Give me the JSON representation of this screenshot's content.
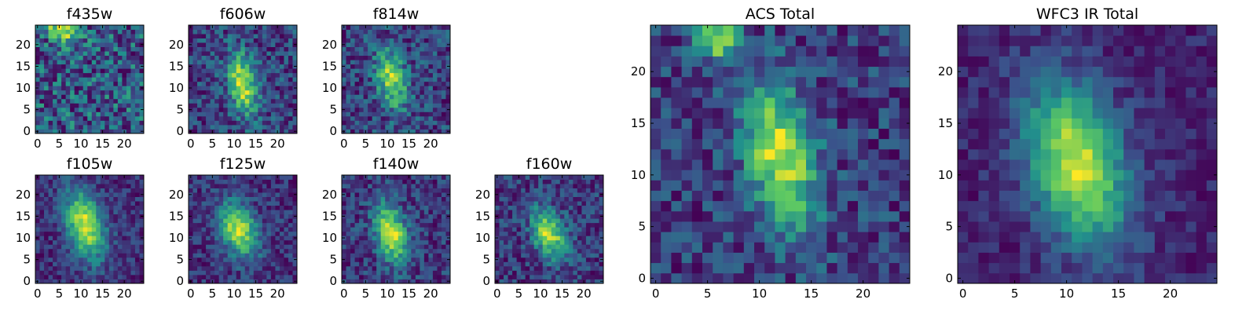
{
  "figure": {
    "colormap": "viridis",
    "colormap_stops": [
      "#440154",
      "#3b528b",
      "#21918c",
      "#5ec962",
      "#fde725"
    ],
    "background": "#ffffff"
  },
  "chart_data": [
    {
      "type": "heatmap",
      "title": "f435w",
      "grid_size": 25,
      "xticks": [
        0,
        5,
        10,
        15,
        20
      ],
      "yticks": [
        0,
        5,
        10,
        15,
        20
      ],
      "xlim": [
        -0.5,
        24.5
      ],
      "ylim": [
        -0.5,
        24.5
      ],
      "peak": [
        6,
        23
      ],
      "peak_sigma": [
        2.5,
        1.8
      ],
      "noise": 0.5,
      "seed": 11,
      "base_level": 0.52
    },
    {
      "type": "heatmap",
      "title": "f606w",
      "grid_size": 25,
      "xticks": [
        0,
        5,
        10,
        15,
        20
      ],
      "yticks": [
        0,
        5,
        10,
        15,
        20
      ],
      "xlim": [
        -0.5,
        24.5
      ],
      "ylim": [
        -0.5,
        24.5
      ],
      "peak": [
        12,
        11
      ],
      "peak_sigma": [
        2.2,
        5.0
      ],
      "noise": 0.35,
      "seed": 23,
      "base_level": 0.45
    },
    {
      "type": "heatmap",
      "title": "f814w",
      "grid_size": 25,
      "xticks": [
        0,
        5,
        10,
        15,
        20
      ],
      "yticks": [
        0,
        5,
        10,
        15,
        20
      ],
      "xlim": [
        -0.5,
        24.5
      ],
      "ylim": [
        -0.5,
        24.5
      ],
      "peak": [
        11,
        12
      ],
      "peak_sigma": [
        2.4,
        4.8
      ],
      "noise": 0.4,
      "seed": 37,
      "base_level": 0.42
    },
    {
      "type": "heatmap",
      "title": "f105w",
      "grid_size": 25,
      "xticks": [
        0,
        5,
        10,
        15,
        20
      ],
      "yticks": [
        0,
        5,
        10,
        15,
        20
      ],
      "xlim": [
        -0.5,
        24.5
      ],
      "ylim": [
        -0.5,
        24.5
      ],
      "peak": [
        11,
        13
      ],
      "peak_sigma": [
        3.0,
        5.5
      ],
      "noise": 0.22,
      "seed": 41,
      "base_level": 0.42
    },
    {
      "type": "heatmap",
      "title": "f125w",
      "grid_size": 25,
      "xticks": [
        0,
        5,
        10,
        15,
        20
      ],
      "yticks": [
        0,
        5,
        10,
        15,
        20
      ],
      "xlim": [
        -0.5,
        24.5
      ],
      "ylim": [
        -0.5,
        24.5
      ],
      "peak": [
        11,
        12
      ],
      "peak_sigma": [
        3.0,
        4.5
      ],
      "noise": 0.25,
      "seed": 53,
      "base_level": 0.45
    },
    {
      "type": "heatmap",
      "title": "f140w",
      "grid_size": 25,
      "xticks": [
        0,
        5,
        10,
        15,
        20
      ],
      "yticks": [
        0,
        5,
        10,
        15,
        20
      ],
      "xlim": [
        -0.5,
        24.5
      ],
      "ylim": [
        -0.5,
        24.5
      ],
      "peak": [
        11,
        11
      ],
      "peak_sigma": [
        2.5,
        4.8
      ],
      "noise": 0.28,
      "seed": 67,
      "base_level": 0.42
    },
    {
      "type": "heatmap",
      "title": "f160w",
      "grid_size": 25,
      "xticks": [
        0,
        5,
        10,
        15,
        20
      ],
      "yticks": [
        0,
        5,
        10,
        15,
        20
      ],
      "xlim": [
        -0.5,
        24.5
      ],
      "ylim": [
        -0.5,
        24.5
      ],
      "peak": [
        12,
        11
      ],
      "peak_sigma": [
        2.6,
        4.0
      ],
      "noise": 0.3,
      "seed": 79,
      "base_level": 0.35
    },
    {
      "type": "heatmap",
      "title": "ACS Total",
      "grid_size": 25,
      "xticks": [
        0,
        5,
        10,
        15,
        20
      ],
      "yticks": [
        0,
        5,
        10,
        15,
        20
      ],
      "xlim": [
        -0.5,
        24.5
      ],
      "ylim": [
        -0.5,
        24.5
      ],
      "peak": [
        12,
        12
      ],
      "peak_sigma": [
        2.3,
        5.0
      ],
      "secondary_peak": [
        6,
        23
      ],
      "noise": 0.3,
      "seed": 97,
      "base_level": 0.45
    },
    {
      "type": "heatmap",
      "title": "WFC3 IR Total",
      "grid_size": 25,
      "xticks": [
        0,
        5,
        10,
        15,
        20
      ],
      "yticks": [
        0,
        5,
        10,
        15,
        20
      ],
      "xlim": [
        -0.5,
        24.5
      ],
      "ylim": [
        -0.5,
        24.5
      ],
      "peak": [
        11,
        11
      ],
      "peak_sigma": [
        3.2,
        5.5
      ],
      "noise": 0.15,
      "seed": 113,
      "base_level": 0.35
    }
  ]
}
